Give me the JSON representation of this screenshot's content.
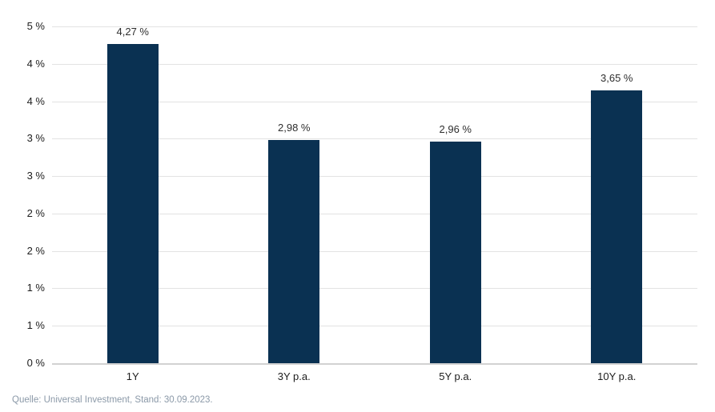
{
  "source_note": "Quelle: Universal Investment, Stand: 30.09.2023.",
  "colors": {
    "bar": "#0a3152",
    "gridline": "#e3e3e3",
    "baseline": "#d2d2d2",
    "tick_text": "#1d1d1d",
    "value_label_text": "#2e2e2e",
    "category_text": "#1d1d1d",
    "source_text": "#8b99a8",
    "background": "#ffffff"
  },
  "chart_data": {
    "type": "bar",
    "title": "",
    "xlabel": "",
    "ylabel": "",
    "categories": [
      "1Y",
      "3Y p.a.",
      "5Y p.a.",
      "10Y p.a."
    ],
    "values": [
      4.27,
      2.98,
      2.96,
      3.65
    ],
    "value_labels": [
      "4,27 %",
      "2,98 %",
      "2,96 %",
      "3,65 %"
    ],
    "ylim": [
      0,
      4.5
    ],
    "y_tick_step": 0.5,
    "y_ticks": [
      {
        "value": 4.5,
        "label": "5 %"
      },
      {
        "value": 4.0,
        "label": "4 %"
      },
      {
        "value": 3.5,
        "label": "4 %"
      },
      {
        "value": 3.0,
        "label": "3 %"
      },
      {
        "value": 2.5,
        "label": "3 %"
      },
      {
        "value": 2.0,
        "label": "2 %"
      },
      {
        "value": 1.5,
        "label": "2 %"
      },
      {
        "value": 1.0,
        "label": "1 %"
      },
      {
        "value": 0.5,
        "label": "1 %"
      },
      {
        "value": 0.0,
        "label": "0 %"
      }
    ],
    "grid": true,
    "legend": false
  }
}
